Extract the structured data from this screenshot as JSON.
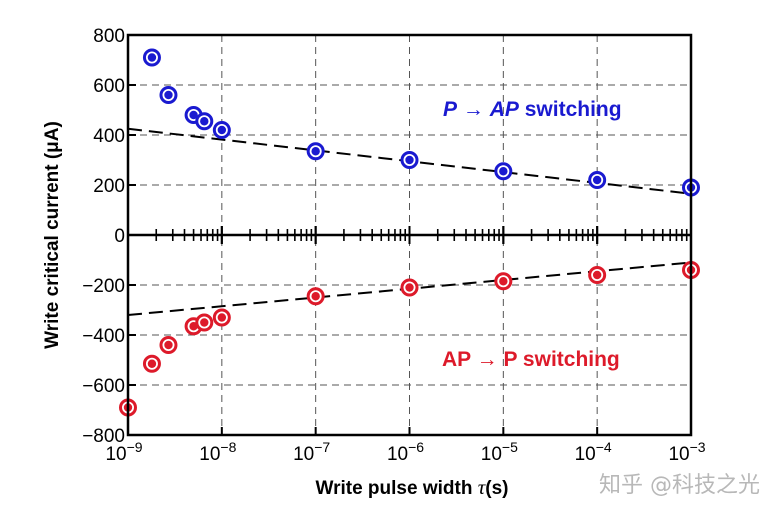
{
  "chart_data": {
    "type": "scatter",
    "xlabel_prefix": "Write pulse width ",
    "xlabel_symbol": "τ",
    "xlabel_suffix": "(s)",
    "ylabel": "Write critical current (μA)",
    "xscale": "log",
    "xlim": [
      1e-09,
      0.001
    ],
    "ylim": [
      -800,
      800
    ],
    "grid": true,
    "x_tick_labels": [
      {
        "base": "10",
        "exp": "−9",
        "value": 1e-09
      },
      {
        "base": "10",
        "exp": "−8",
        "value": 1e-08
      },
      {
        "base": "10",
        "exp": "−7",
        "value": 1e-07
      },
      {
        "base": "10",
        "exp": "−6",
        "value": 1e-06
      },
      {
        "base": "10",
        "exp": "−5",
        "value": 1e-05
      },
      {
        "base": "10",
        "exp": "−4",
        "value": 0.0001
      },
      {
        "base": "10",
        "exp": "−3",
        "value": 0.001
      }
    ],
    "y_tick_labels": [
      {
        "text": "800",
        "value": 800
      },
      {
        "text": "600",
        "value": 600
      },
      {
        "text": "400",
        "value": 400
      },
      {
        "text": "200",
        "value": 200
      },
      {
        "text": "0",
        "value": 0
      },
      {
        "text": "−200",
        "value": -200
      },
      {
        "text": "−400",
        "value": -400
      },
      {
        "text": "−600",
        "value": -600
      },
      {
        "text": "−800",
        "value": -800
      }
    ],
    "series": [
      {
        "color": "#1a1ad0",
        "points": [
          {
            "x": 1.8e-09,
            "y": 710
          },
          {
            "x": 2.7e-09,
            "y": 560
          },
          {
            "x": 5e-09,
            "y": 480
          },
          {
            "x": 6.5e-09,
            "y": 455
          },
          {
            "x": 1e-08,
            "y": 420
          },
          {
            "x": 1e-07,
            "y": 335
          },
          {
            "x": 1e-06,
            "y": 300
          },
          {
            "x": 1e-05,
            "y": 255
          },
          {
            "x": 0.0001,
            "y": 220
          },
          {
            "x": 0.001,
            "y": 190
          }
        ],
        "fit": [
          {
            "x": 1e-09,
            "y": 425
          },
          {
            "x": 0.001,
            "y": 165
          }
        ]
      },
      {
        "color": "#dd1a2a",
        "points": [
          {
            "x": 1e-09,
            "y": -690
          },
          {
            "x": 1.8e-09,
            "y": -515
          },
          {
            "x": 2.7e-09,
            "y": -440
          },
          {
            "x": 5e-09,
            "y": -365
          },
          {
            "x": 6.5e-09,
            "y": -350
          },
          {
            "x": 1e-08,
            "y": -330
          },
          {
            "x": 1e-07,
            "y": -245
          },
          {
            "x": 1e-06,
            "y": -210
          },
          {
            "x": 1e-05,
            "y": -185
          },
          {
            "x": 0.0001,
            "y": -160
          },
          {
            "x": 0.001,
            "y": -140
          }
        ],
        "fit": [
          {
            "x": 1e-09,
            "y": -320
          },
          {
            "x": 0.001,
            "y": -110
          }
        ]
      }
    ],
    "annotations": {
      "p_to_ap": {
        "from": "P",
        "arrow": "→",
        "to": "AP",
        "rest": " switching",
        "color": "#1a1ad0"
      },
      "ap_to_p": {
        "text": "AP → P switching",
        "color": "#dd1a2a"
      }
    }
  },
  "watermark": "知乎 @科技之光"
}
